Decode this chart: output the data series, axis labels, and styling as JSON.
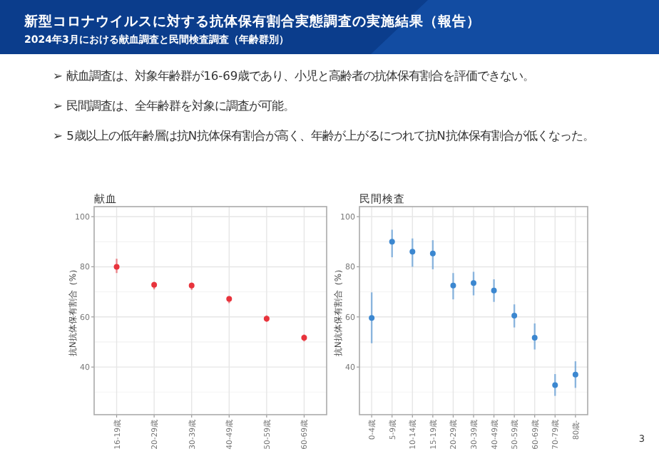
{
  "chart_data": [
    {
      "type": "other",
      "title": "新型コロナウイルスに対する抗体保有割合実態調査の実施結果（報告）",
      "subtitle": "2024年3月における献血調査と民間検査調査（年齢群別）",
      "annotations": [
        "➢ 献血調査は、対象年齢群が16-69歳であり、小児と高齢者の抗体保有割合を評価できない。",
        "➢ 民間調査は、全年齢群を対象に調査が可能。",
        "➢ 5歳以上の低年齢層は抗N抗体保有割合が高く、年齢が上がるにつれて抗N抗体保有割合が低くなった。"
      ]
    },
    {
      "type": "scatter",
      "title": "献血",
      "ylabel": "抗N抗体保有割合（%）",
      "categories": [
        "16-19歳",
        "20-29歳",
        "30-39歳",
        "40-49歳",
        "50-59歳",
        "60-69歳"
      ],
      "values": [
        80,
        72.8,
        72.5,
        67.2,
        59.3,
        51.7
      ],
      "errors": [
        [
          77.5,
          83.2
        ],
        [
          71,
          74
        ],
        [
          70.8,
          73.7
        ],
        [
          65.5,
          68.3
        ],
        [
          58,
          60.6
        ],
        [
          50.2,
          53
        ]
      ],
      "color": "#e8333c",
      "marker": "circle",
      "ylim": [
        21,
        104
      ],
      "yticks": [
        40,
        60,
        80,
        100
      ],
      "grid": true
    },
    {
      "type": "scatter",
      "title": "民間検査",
      "ylabel": "抗N抗体保有割合（%）",
      "categories": [
        "0-4歳",
        "5-9歳",
        "10-14歳",
        "15-19歳",
        "20-29歳",
        "30-39歳",
        "40-49歳",
        "50-59歳",
        "60-69歳",
        "70-79歳",
        "80歳-"
      ],
      "values": [
        59.6,
        90,
        86,
        85.3,
        72.5,
        73.5,
        70.5,
        60.5,
        51.7,
        32.8,
        37
      ],
      "errors": [
        [
          49.5,
          69.8
        ],
        [
          83.8,
          94.8
        ],
        [
          80,
          91.3
        ],
        [
          79,
          90.6
        ],
        [
          67,
          77.5
        ],
        [
          68.6,
          78
        ],
        [
          66,
          75
        ],
        [
          55.8,
          65
        ],
        [
          47,
          57.4
        ],
        [
          28.5,
          37.2
        ],
        [
          31.7,
          42.3
        ]
      ],
      "color": "#3b87d0",
      "marker": "circle",
      "ylim": [
        21,
        104
      ],
      "yticks": [
        40,
        60,
        80,
        100
      ],
      "grid": true,
      "annotations": [
        "3"
      ]
    }
  ]
}
